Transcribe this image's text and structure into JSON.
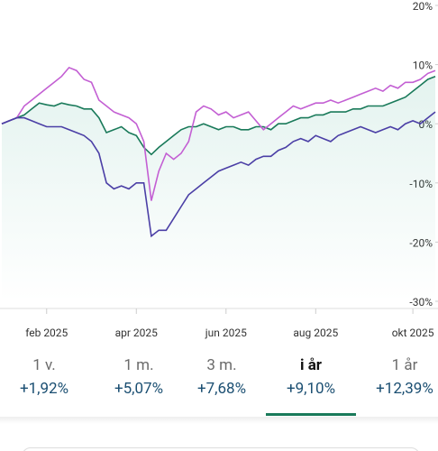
{
  "chart_data": {
    "type": "line",
    "categories": [
      null,
      null,
      null,
      null,
      null,
      null,
      "feb 2025",
      null,
      null,
      null,
      null,
      null,
      null,
      null,
      null,
      null,
      null,
      null,
      "apr 2025",
      null,
      null,
      null,
      null,
      null,
      null,
      null,
      null,
      null,
      null,
      null,
      "jun 2025",
      null,
      null,
      null,
      null,
      null,
      null,
      null,
      null,
      null,
      null,
      null,
      "aug 2025",
      null,
      null,
      null,
      null,
      null,
      null,
      null,
      null,
      null,
      null,
      null,
      null,
      "okt 2025",
      null,
      null,
      null
    ],
    "series": [
      {
        "color": "#1a7a5a",
        "area": true,
        "values": [
          0,
          0.5,
          1,
          1.5,
          2.5,
          3.5,
          3.2,
          3,
          3.5,
          3.2,
          3,
          2.5,
          2.5,
          1,
          -1.5,
          -1,
          -0.5,
          -1.5,
          -2,
          -4,
          -5.2,
          -4,
          -3,
          -2,
          -1,
          -0.5,
          -0.5,
          0,
          -0.5,
          -1,
          -0.5,
          -0.5,
          -1,
          -1,
          -0.5,
          -0.5,
          -1,
          0,
          0,
          0.5,
          1,
          1,
          1.5,
          1.5,
          2,
          2,
          2,
          2.5,
          2.5,
          3,
          3,
          3,
          3.5,
          4,
          4.5,
          5.5,
          6.5,
          7.5,
          8
        ]
      },
      {
        "color": "#c35fd3",
        "values": [
          0,
          0.5,
          1,
          3,
          4,
          5,
          6,
          7,
          8,
          9.5,
          9,
          7.5,
          7,
          4,
          3,
          2,
          1.5,
          1,
          0,
          -3,
          -13,
          -8,
          -5,
          -6,
          -5,
          -3,
          2,
          3,
          2.5,
          1.5,
          2,
          1,
          1.5,
          2,
          0.5,
          -1,
          0,
          1,
          2,
          3,
          2.5,
          3,
          3.5,
          3.5,
          4,
          3.5,
          4,
          4.5,
          5,
          5.5,
          6,
          5.5,
          6.5,
          6,
          7,
          7,
          7.5,
          8.5,
          9
        ]
      },
      {
        "color": "#4b3fa6",
        "values": [
          0,
          0.5,
          1,
          1,
          0.5,
          0,
          -0.5,
          -0.5,
          -0.5,
          -1,
          -1.5,
          -2,
          -3,
          -5,
          -10,
          -11,
          -10.5,
          -11,
          -10,
          -10,
          -19,
          -18,
          -18,
          -16,
          -14,
          -12,
          -11,
          -10,
          -9,
          -8,
          -7.5,
          -7,
          -6.5,
          -7,
          -6,
          -5.5,
          -5.5,
          -4.5,
          -4,
          -3,
          -2.5,
          -3,
          -2,
          -2.5,
          -3,
          -2,
          -1.5,
          -1,
          -0.5,
          -1,
          -1.5,
          -1,
          -0.5,
          -1,
          0,
          0.5,
          0,
          1,
          2
        ]
      }
    ],
    "ylim": [
      -30,
      20
    ],
    "yticks": [
      {
        "value": 20,
        "label": "20%"
      },
      {
        "value": 10,
        "label": "10%"
      },
      {
        "value": 0,
        "label": "0%"
      },
      {
        "value": -10,
        "label": "-10%"
      },
      {
        "value": -20,
        "label": "-20%"
      },
      {
        "value": -30,
        "label": "-30%"
      }
    ],
    "grid": false
  },
  "tabs": {
    "selected": 3,
    "items": [
      {
        "label": "1 v.",
        "change": "+1,92%"
      },
      {
        "label": "1 m.",
        "change": "+5,07%"
      },
      {
        "label": "3 m.",
        "change": "+7,68%"
      },
      {
        "label": "i år",
        "change": "+9,10%"
      },
      {
        "label": "1 år",
        "change": "+12,39%"
      }
    ]
  }
}
